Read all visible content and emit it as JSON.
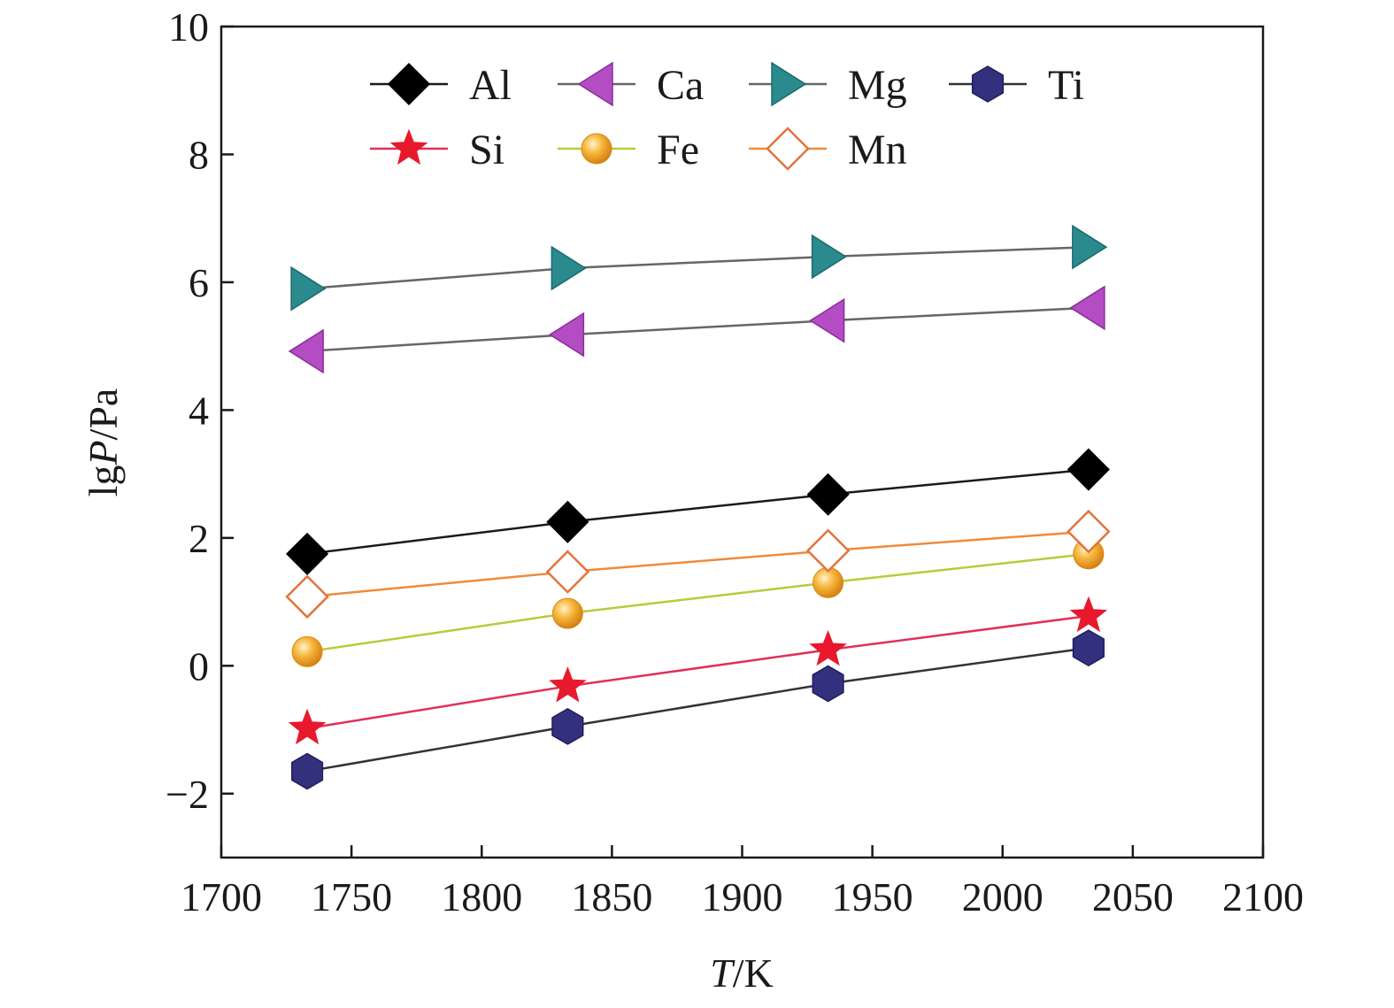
{
  "chart_data": {
    "type": "line",
    "xlabel": {
      "italic": "T",
      "rest": "/K"
    },
    "ylabel": {
      "prefix": "lg",
      "italic": "P",
      "rest": "/Pa"
    },
    "xlim": [
      1700,
      2100
    ],
    "ylim": [
      -3,
      10
    ],
    "x_ticks": [
      1700,
      1750,
      1800,
      1850,
      1900,
      1950,
      2000,
      2050,
      2100
    ],
    "y_ticks": [
      -2,
      0,
      2,
      4,
      6,
      8,
      10
    ],
    "x_tick_labels": [
      "1700",
      "1750",
      "1800",
      "1850",
      "1900",
      "1950",
      "2000",
      "2050",
      "2100"
    ],
    "y_tick_labels": [
      "−2",
      "0",
      "2",
      "4",
      "6",
      "8",
      "10"
    ],
    "grid": false,
    "legend_position": "top",
    "x": [
      1733,
      1833,
      1933,
      2033
    ],
    "series": [
      {
        "name": "Al",
        "values": [
          1.75,
          2.25,
          2.68,
          3.07
        ],
        "marker": "diamond",
        "line_color": "#1a1a1a",
        "fill": "#000000",
        "stroke": "#000000"
      },
      {
        "name": "Ca",
        "values": [
          4.92,
          5.18,
          5.4,
          5.6
        ],
        "marker": "triangle-left",
        "line_color": "#666666",
        "fill": "#b44cc4",
        "stroke": "#8a2e9a"
      },
      {
        "name": "Mg",
        "values": [
          5.9,
          6.22,
          6.4,
          6.55
        ],
        "marker": "triangle-right",
        "line_color": "#666666",
        "fill": "#2a8a8e",
        "stroke": "#1d6a6e"
      },
      {
        "name": "Ti",
        "values": [
          -1.65,
          -0.95,
          -0.28,
          0.28
        ],
        "marker": "hexagon",
        "line_color": "#333333",
        "fill": "#33307e",
        "stroke": "#201d5c"
      },
      {
        "name": "Si",
        "values": [
          -0.98,
          -0.32,
          0.25,
          0.78
        ],
        "marker": "star",
        "line_color": "#e0305a",
        "fill": "#e8192c",
        "stroke": "#e8192c"
      },
      {
        "name": "Fe",
        "values": [
          0.22,
          0.82,
          1.3,
          1.75
        ],
        "marker": "sphere",
        "line_color": "#b8cc3a",
        "fill": "#f0a020",
        "stroke": "#d98a10"
      },
      {
        "name": "Mn",
        "values": [
          1.08,
          1.47,
          1.8,
          2.1
        ],
        "marker": "diamond-open",
        "line_color": "#f08a3a",
        "fill": "#ffffff",
        "stroke": "#e2743a"
      }
    ]
  }
}
